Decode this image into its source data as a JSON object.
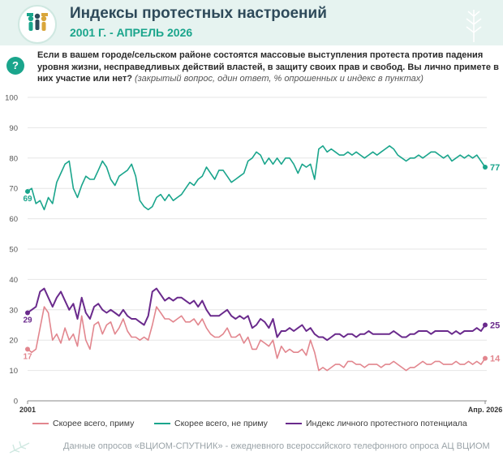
{
  "header": {
    "title": "Индексы протестных настроений",
    "subtitle": "2001 Г. - АПРЕЛЬ 2026"
  },
  "question": {
    "badge": "?",
    "text": "Если в вашем городе/сельском районе состоятся массовые выступления протеста против падения уровня жизни, несправедливых действий властей, в защиту своих прав и свобод. Вы лично примете в них участие или нет?",
    "note": "(закрытый вопрос, один ответ, % опрошенных и индекс в пунктах)"
  },
  "footer": {
    "text": "Данные опросов «ВЦИОМ-СПУТНИК» - ежедневного всероссийского телефонного опроса АЦ ВЦИОМ"
  },
  "colors": {
    "teal": "#1aa58c",
    "pink": "#e2868e",
    "purple": "#6a2a8c",
    "grid": "#e6e6e6"
  },
  "chart_data": {
    "type": "line",
    "x_start_label": "2001",
    "x_end_label": "Апр. 2026",
    "ylim": [
      0,
      100
    ],
    "yticks": [
      0,
      10,
      20,
      30,
      40,
      50,
      60,
      70,
      80,
      90,
      100
    ],
    "series": [
      {
        "name": "Скорее всего, приму",
        "color": "#e2868e",
        "start_label": "17",
        "end_label": "14",
        "values": [
          17,
          16,
          17,
          24,
          31,
          29,
          20,
          22,
          19,
          24,
          20,
          22,
          18,
          28,
          20,
          17,
          25,
          26,
          22,
          25,
          26,
          22,
          24,
          27,
          23,
          21,
          21,
          20,
          21,
          20,
          25,
          31,
          29,
          27,
          27,
          26,
          27,
          28,
          26,
          26,
          27,
          25,
          27,
          24,
          22,
          21,
          21,
          22,
          24,
          21,
          21,
          22,
          19,
          21,
          17,
          17,
          20,
          19,
          18,
          20,
          14,
          18,
          16,
          17,
          16,
          16,
          17,
          15,
          20,
          16,
          10,
          11,
          10,
          11,
          12,
          12,
          11,
          13,
          13,
          12,
          12,
          11,
          12,
          12,
          12,
          11,
          12,
          12,
          13,
          12,
          11,
          10,
          11,
          11,
          12,
          13,
          12,
          12,
          13,
          13,
          12,
          12,
          12,
          13,
          12,
          12,
          13,
          12,
          13,
          12,
          14
        ]
      },
      {
        "name": "Скорее всего, не приму",
        "color": "#1aa58c",
        "start_label": "69",
        "end_label": "77",
        "values": [
          69,
          70,
          65,
          66,
          63,
          67,
          65,
          72,
          75,
          78,
          79,
          70,
          67,
          71,
          74,
          73,
          73,
          76,
          79,
          77,
          73,
          71,
          74,
          75,
          76,
          78,
          74,
          66,
          64,
          63,
          64,
          67,
          68,
          66,
          68,
          66,
          67,
          68,
          70,
          72,
          71,
          73,
          74,
          77,
          75,
          73,
          76,
          76,
          74,
          72,
          73,
          74,
          75,
          79,
          80,
          82,
          81,
          78,
          80,
          78,
          80,
          78,
          80,
          80,
          78,
          75,
          78,
          77,
          78,
          73,
          83,
          84,
          82,
          83,
          82,
          81,
          81,
          82,
          81,
          82,
          81,
          80,
          81,
          82,
          81,
          82,
          83,
          84,
          83,
          81,
          80,
          79,
          80,
          80,
          81,
          80,
          81,
          82,
          82,
          81,
          80,
          81,
          79,
          80,
          81,
          80,
          81,
          80,
          81,
          79,
          77
        ]
      },
      {
        "name": "Индекс личного протестного потенциала",
        "color": "#6a2a8c",
        "start_label": "29",
        "end_label": "25",
        "values": [
          29,
          30,
          31,
          36,
          37,
          34,
          31,
          34,
          36,
          33,
          30,
          32,
          27,
          34,
          29,
          27,
          31,
          32,
          30,
          29,
          30,
          29,
          28,
          30,
          28,
          27,
          27,
          26,
          25,
          28,
          36,
          37,
          35,
          33,
          34,
          33,
          34,
          34,
          33,
          32,
          33,
          31,
          33,
          30,
          28,
          28,
          28,
          29,
          30,
          28,
          27,
          28,
          27,
          28,
          24,
          25,
          27,
          26,
          24,
          27,
          21,
          23,
          23,
          24,
          23,
          24,
          25,
          23,
          24,
          22,
          21,
          21,
          20,
          21,
          22,
          22,
          21,
          22,
          22,
          21,
          22,
          22,
          23,
          22,
          22,
          22,
          22,
          22,
          23,
          22,
          21,
          21,
          22,
          22,
          23,
          23,
          23,
          22,
          23,
          23,
          23,
          23,
          22,
          23,
          22,
          23,
          23,
          23,
          24,
          23,
          25
        ]
      }
    ]
  }
}
